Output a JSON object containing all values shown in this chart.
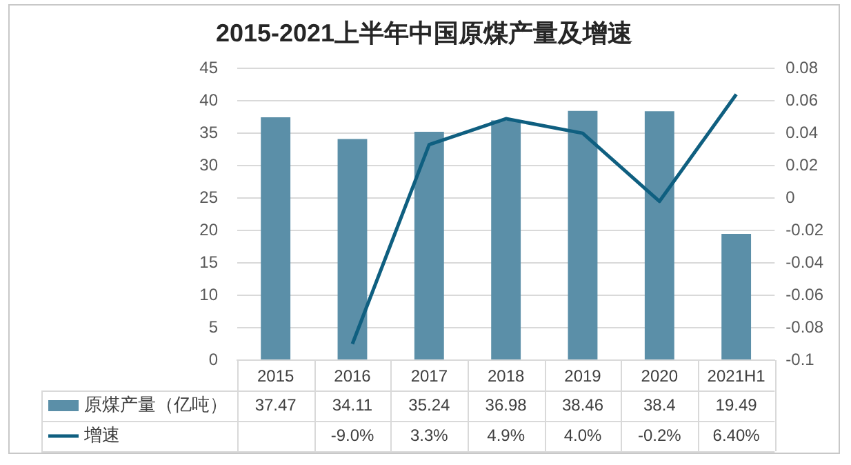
{
  "chart_data": {
    "type": "bar",
    "title": "2015-2021上半年中国原煤产量及增速",
    "categories": [
      "2015",
      "2016",
      "2017",
      "2018",
      "2019",
      "2020",
      "2021H1"
    ],
    "series": [
      {
        "name": "原煤产量（亿吨）",
        "color": "#5b8fa8",
        "values": [
          37.47,
          34.11,
          35.24,
          36.98,
          38.46,
          38.4,
          19.49
        ],
        "value_labels": [
          "37.47",
          "34.11",
          "35.24",
          "36.98",
          "38.46",
          "38.4",
          "19.49"
        ]
      },
      {
        "name": "增速",
        "type": "line",
        "axis": "y2",
        "color": "#0f5f80",
        "values": [
          null,
          -0.09,
          0.033,
          0.049,
          0.04,
          -0.002,
          0.064
        ],
        "value_labels": [
          null,
          "-9.0%",
          "3.3%",
          "4.9%",
          "4.0%",
          "-0.2%",
          "6.40%"
        ]
      }
    ],
    "ylim": [
      0,
      45
    ],
    "yticks": [
      0,
      5,
      10,
      15,
      20,
      25,
      30,
      35,
      40,
      45
    ],
    "y2lim": [
      -0.1,
      0.08
    ],
    "y2ticks": [
      -0.1,
      -0.08,
      -0.06,
      -0.04,
      -0.02,
      0,
      0.02,
      0.04,
      0.06,
      0.08
    ],
    "grid": "y",
    "legend": "bottom",
    "marker": "none",
    "line_style": "solid"
  }
}
